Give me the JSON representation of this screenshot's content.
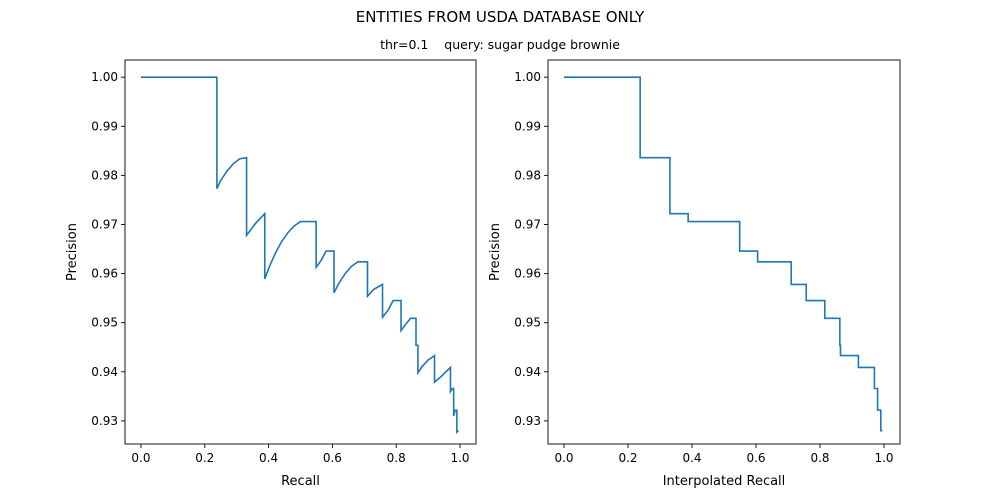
{
  "figure": {
    "title": "ENTITIES FROM USDA DATABASE ONLY",
    "subtitle": "thr=0.1    query: sugar pudge brownie",
    "line_color": "#1f77b4"
  },
  "chart_data": [
    {
      "type": "line",
      "title": "",
      "xlabel": "Recall",
      "ylabel": "Precision",
      "xlim": [
        -0.05,
        1.05
      ],
      "ylim": [
        0.9253,
        1.0035
      ],
      "xticks": [
        "0.0",
        "0.2",
        "0.4",
        "0.6",
        "0.8",
        "1.0"
      ],
      "yticks": [
        "0.93",
        "0.94",
        "0.95",
        "0.96",
        "0.97",
        "0.98",
        "0.99",
        "1.00"
      ],
      "grid": false,
      "series": [
        {
          "x": [
            0.0,
            0.238,
            0.238,
            0.25,
            0.27,
            0.29,
            0.31,
            0.331,
            0.331,
            0.345,
            0.36,
            0.375,
            0.388,
            0.388,
            0.4,
            0.42,
            0.44,
            0.46,
            0.48,
            0.5,
            0.52,
            0.549,
            0.549,
            0.565,
            0.58,
            0.605,
            0.605,
            0.62,
            0.64,
            0.66,
            0.68,
            0.71,
            0.71,
            0.73,
            0.757,
            0.757,
            0.775,
            0.79,
            0.815,
            0.815,
            0.83,
            0.845,
            0.862,
            0.862,
            0.864,
            0.864,
            0.868,
            0.868,
            0.88,
            0.9,
            0.92,
            0.92,
            0.94,
            0.97,
            0.97,
            0.976,
            0.976,
            0.98,
            0.98,
            0.985,
            0.985,
            0.99,
            0.99,
            0.995,
            0.995
          ],
          "y": [
            1.0,
            1.0,
            0.9773,
            0.979,
            0.9809,
            0.9824,
            0.9834,
            0.9836,
            0.9678,
            0.969,
            0.9703,
            0.9713,
            0.9722,
            0.9589,
            0.961,
            0.964,
            0.9664,
            0.9683,
            0.9697,
            0.9706,
            0.9706,
            0.9706,
            0.9613,
            0.9627,
            0.9646,
            0.9646,
            0.9561,
            0.958,
            0.96,
            0.9615,
            0.9624,
            0.9624,
            0.9554,
            0.9568,
            0.9578,
            0.9511,
            0.9526,
            0.9545,
            0.9545,
            0.9484,
            0.9497,
            0.9509,
            0.9509,
            0.9454,
            0.9454,
            0.9454,
            0.9454,
            0.9398,
            0.941,
            0.9424,
            0.9433,
            0.9379,
            0.939,
            0.9409,
            0.936,
            0.9366,
            0.9366,
            0.9366,
            0.931,
            0.9322,
            0.9322,
            0.9322,
            0.9277,
            0.928,
            0.928
          ]
        }
      ]
    },
    {
      "type": "line",
      "title": "",
      "xlabel": "Interpolated Recall",
      "ylabel": "Precision",
      "xlim": [
        -0.05,
        1.05
      ],
      "ylim": [
        0.9253,
        1.0035
      ],
      "xticks": [
        "0.0",
        "0.2",
        "0.4",
        "0.6",
        "0.8",
        "1.0"
      ],
      "yticks": [
        "0.93",
        "0.94",
        "0.95",
        "0.96",
        "0.97",
        "0.98",
        "0.99",
        "1.00"
      ],
      "grid": false,
      "series": [
        {
          "x": [
            0.0,
            0.238,
            0.238,
            0.331,
            0.331,
            0.388,
            0.388,
            0.549,
            0.549,
            0.605,
            0.605,
            0.71,
            0.71,
            0.757,
            0.757,
            0.815,
            0.815,
            0.862,
            0.862,
            0.864,
            0.864,
            0.92,
            0.92,
            0.97,
            0.97,
            0.98,
            0.98,
            0.99,
            0.99,
            0.995
          ],
          "y": [
            1.0,
            1.0,
            0.9836,
            0.9836,
            0.9722,
            0.9722,
            0.9706,
            0.9706,
            0.9646,
            0.9646,
            0.9624,
            0.9624,
            0.9578,
            0.9578,
            0.9545,
            0.9545,
            0.9509,
            0.9509,
            0.9454,
            0.9454,
            0.9433,
            0.9433,
            0.9409,
            0.9409,
            0.9366,
            0.9366,
            0.9322,
            0.9322,
            0.928,
            0.928
          ]
        }
      ]
    }
  ]
}
